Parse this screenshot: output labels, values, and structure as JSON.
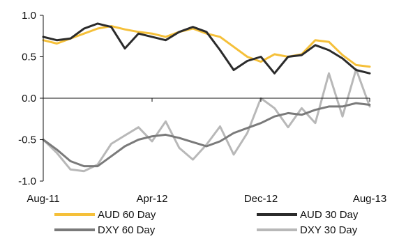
{
  "chart_data": {
    "type": "line",
    "title": "",
    "xlabel": "",
    "ylabel": "",
    "ylim": [
      -1.0,
      1.0
    ],
    "yticks": [
      "1.0",
      "0.5",
      "0.0",
      "-0.5",
      "-1.0"
    ],
    "ytick_values": [
      1.0,
      0.5,
      0.0,
      -0.5,
      -1.0
    ],
    "xlim": [
      "2011-08",
      "2013-08"
    ],
    "xticks": [
      "Aug-11",
      "Apr-12",
      "Dec-12",
      "Aug-13"
    ],
    "xtick_values": [
      "2011-08",
      "2012-04",
      "2012-12",
      "2013-08"
    ],
    "grid": false,
    "legend_position": "bottom",
    "series": [
      {
        "name": "AUD 60 Day",
        "color": "#f5c03a",
        "points": [
          [
            "2011-08",
            0.7
          ],
          [
            "2011-09",
            0.66
          ],
          [
            "2011-10",
            0.72
          ],
          [
            "2011-11",
            0.78
          ],
          [
            "2011-12",
            0.84
          ],
          [
            "2012-01",
            0.87
          ],
          [
            "2012-02",
            0.83
          ],
          [
            "2012-03",
            0.8
          ],
          [
            "2012-04",
            0.78
          ],
          [
            "2012-05",
            0.74
          ],
          [
            "2012-06",
            0.8
          ],
          [
            "2012-07",
            0.84
          ],
          [
            "2012-08",
            0.78
          ],
          [
            "2012-09",
            0.74
          ],
          [
            "2012-10",
            0.62
          ],
          [
            "2012-11",
            0.5
          ],
          [
            "2012-12",
            0.44
          ],
          [
            "2013-01",
            0.53
          ],
          [
            "2013-02",
            0.5
          ],
          [
            "2013-03",
            0.53
          ],
          [
            "2013-04",
            0.7
          ],
          [
            "2013-05",
            0.68
          ],
          [
            "2013-06",
            0.52
          ],
          [
            "2013-07",
            0.4
          ],
          [
            "2013-08",
            0.38
          ]
        ]
      },
      {
        "name": "AUD 30 Day",
        "color": "#2b2b2b",
        "points": [
          [
            "2011-08",
            0.74
          ],
          [
            "2011-09",
            0.7
          ],
          [
            "2011-10",
            0.72
          ],
          [
            "2011-11",
            0.84
          ],
          [
            "2011-12",
            0.9
          ],
          [
            "2012-01",
            0.86
          ],
          [
            "2012-02",
            0.6
          ],
          [
            "2012-03",
            0.78
          ],
          [
            "2012-04",
            0.74
          ],
          [
            "2012-05",
            0.7
          ],
          [
            "2012-06",
            0.8
          ],
          [
            "2012-07",
            0.86
          ],
          [
            "2012-08",
            0.8
          ],
          [
            "2012-09",
            0.58
          ],
          [
            "2012-10",
            0.34
          ],
          [
            "2012-11",
            0.45
          ],
          [
            "2012-12",
            0.5
          ],
          [
            "2013-01",
            0.3
          ],
          [
            "2013-02",
            0.5
          ],
          [
            "2013-03",
            0.52
          ],
          [
            "2013-04",
            0.64
          ],
          [
            "2013-05",
            0.58
          ],
          [
            "2013-06",
            0.48
          ],
          [
            "2013-07",
            0.34
          ],
          [
            "2013-08",
            0.3
          ]
        ]
      },
      {
        "name": "DXY 60 Day",
        "color": "#7a7a7a",
        "points": [
          [
            "2011-08",
            -0.5
          ],
          [
            "2011-09",
            -0.62
          ],
          [
            "2011-10",
            -0.76
          ],
          [
            "2011-11",
            -0.82
          ],
          [
            "2011-12",
            -0.82
          ],
          [
            "2012-01",
            -0.7
          ],
          [
            "2012-02",
            -0.58
          ],
          [
            "2012-03",
            -0.5
          ],
          [
            "2012-04",
            -0.46
          ],
          [
            "2012-05",
            -0.44
          ],
          [
            "2012-06",
            -0.48
          ],
          [
            "2012-07",
            -0.53
          ],
          [
            "2012-08",
            -0.58
          ],
          [
            "2012-09",
            -0.52
          ],
          [
            "2012-10",
            -0.42
          ],
          [
            "2012-11",
            -0.36
          ],
          [
            "2012-12",
            -0.3
          ],
          [
            "2013-01",
            -0.22
          ],
          [
            "2013-02",
            -0.18
          ],
          [
            "2013-03",
            -0.2
          ],
          [
            "2013-04",
            -0.14
          ],
          [
            "2013-05",
            -0.1
          ],
          [
            "2013-06",
            -0.1
          ],
          [
            "2013-07",
            -0.06
          ],
          [
            "2013-08",
            -0.08
          ]
        ]
      },
      {
        "name": "DXY 30 Day",
        "color": "#b8b8b8",
        "points": [
          [
            "2011-08",
            -0.5
          ],
          [
            "2011-09",
            -0.66
          ],
          [
            "2011-10",
            -0.86
          ],
          [
            "2011-11",
            -0.88
          ],
          [
            "2011-12",
            -0.8
          ],
          [
            "2012-01",
            -0.55
          ],
          [
            "2012-02",
            -0.45
          ],
          [
            "2012-03",
            -0.35
          ],
          [
            "2012-04",
            -0.52
          ],
          [
            "2012-05",
            -0.28
          ],
          [
            "2012-06",
            -0.6
          ],
          [
            "2012-07",
            -0.74
          ],
          [
            "2012-08",
            -0.56
          ],
          [
            "2012-09",
            -0.34
          ],
          [
            "2012-10",
            -0.68
          ],
          [
            "2012-11",
            -0.42
          ],
          [
            "2012-12",
            0.0
          ],
          [
            "2013-01",
            -0.12
          ],
          [
            "2013-02",
            -0.35
          ],
          [
            "2013-03",
            -0.12
          ],
          [
            "2013-04",
            -0.3
          ],
          [
            "2013-05",
            0.3
          ],
          [
            "2013-06",
            -0.22
          ],
          [
            "2013-07",
            0.35
          ],
          [
            "2013-08",
            -0.1
          ]
        ]
      }
    ]
  }
}
